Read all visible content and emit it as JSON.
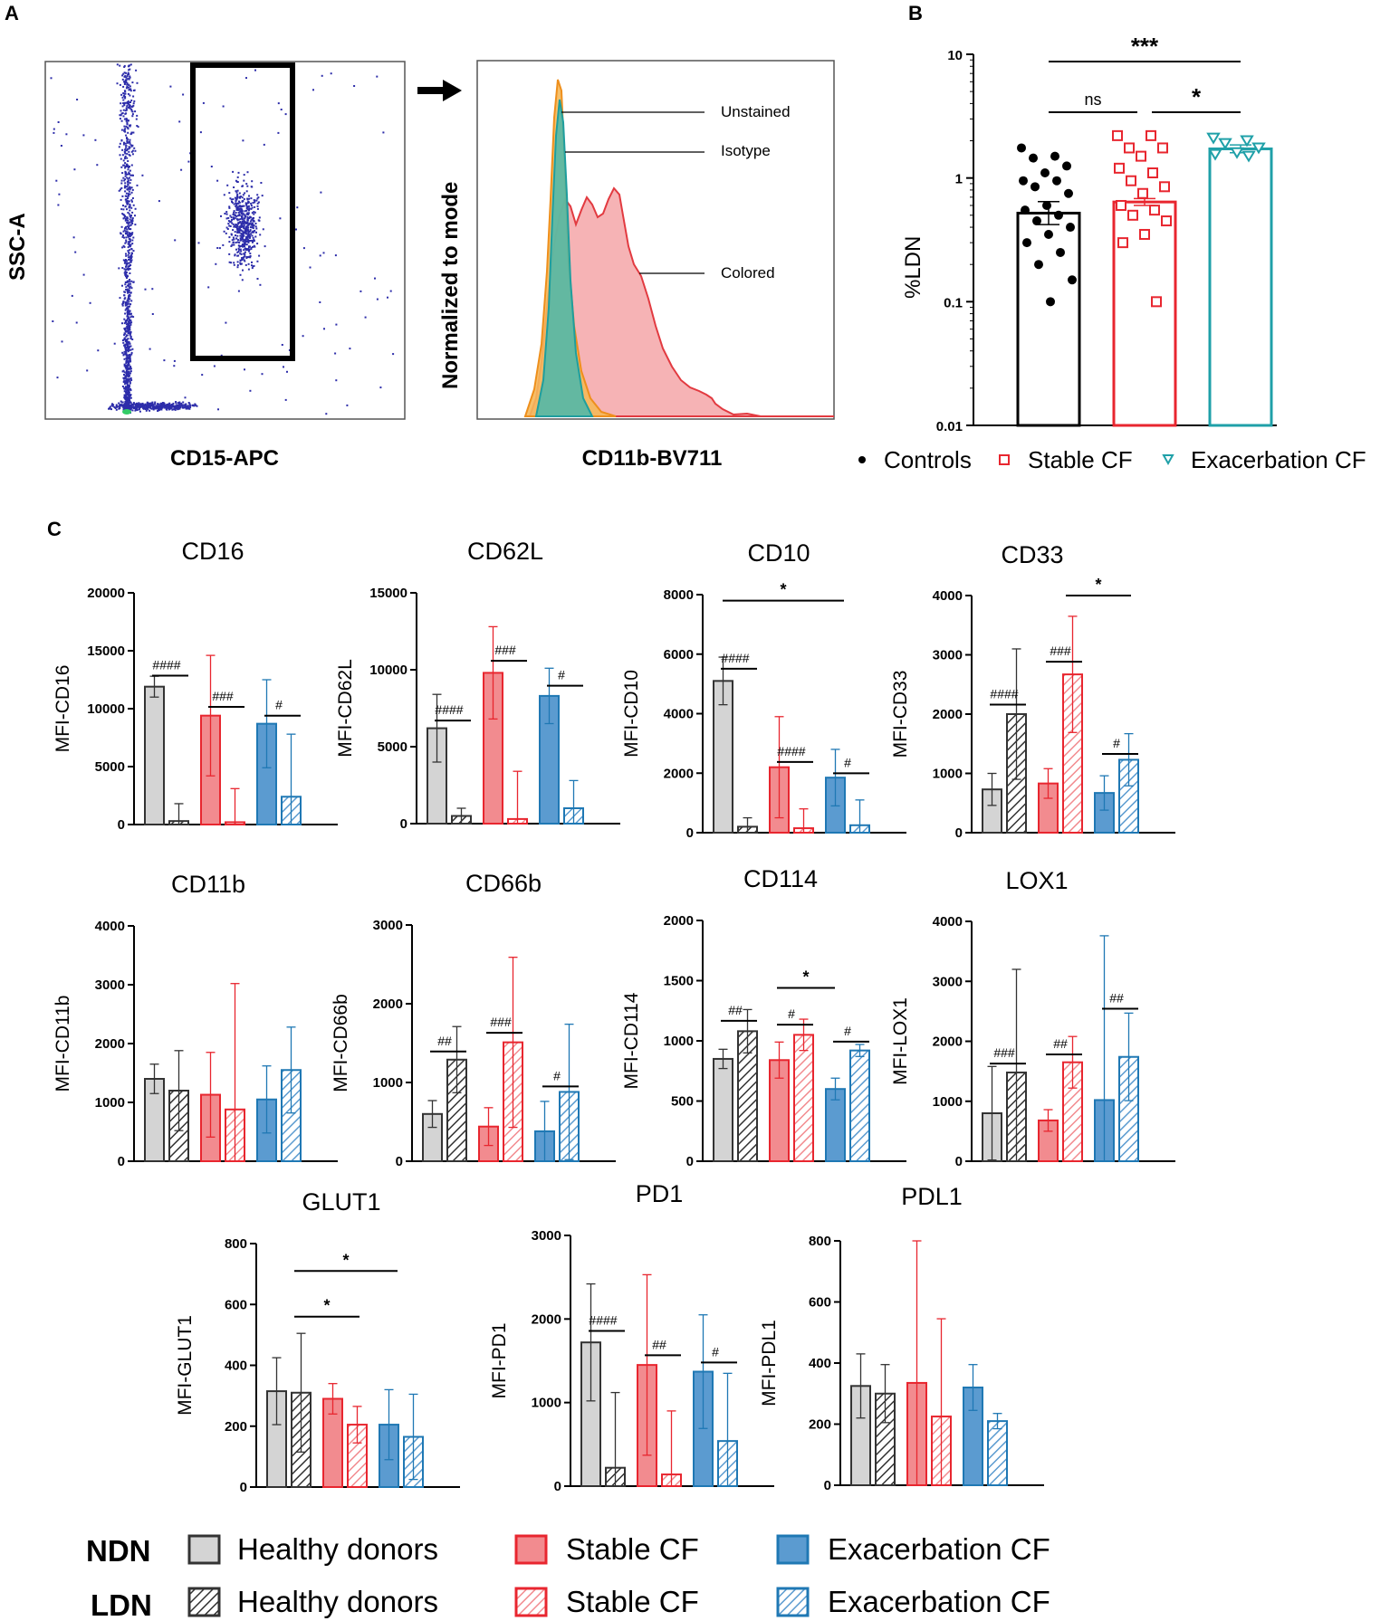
{
  "panels": {
    "a": "A",
    "b": "B",
    "c": "C"
  },
  "panel_a": {
    "scatter": {
      "xlabel": "CD15-APC",
      "ylabel": "SSC-A"
    },
    "histogram": {
      "xlabel": "CD11b-BV711",
      "ylabel": "Normalized to mode",
      "labels": [
        "Unstained",
        "Isotype",
        "Colored"
      ]
    }
  },
  "colors": {
    "healthy_fill": "#d4d4d4",
    "healthy_line": "#333333",
    "stable_fill": "#f28b8f",
    "stable_line": "#e8262f",
    "exac_fill": "#5b9bd0",
    "exac_line": "#1f78b4",
    "teal": "#1fa0a8",
    "dots": "#2d2daa",
    "orange": "#f0a030"
  },
  "chart_data": [
    {
      "id": "B",
      "type": "bar",
      "title": "",
      "ylabel": "%LDN",
      "yscale": "log",
      "yticks": [
        "0.01",
        "0.1",
        "1",
        "10"
      ],
      "categories": [
        "Controls",
        "Stable CF",
        "Exacerbation CF"
      ],
      "values": [
        0.52,
        0.64,
        1.72
      ],
      "errors": [
        0.42,
        0.6,
        1.85
      ],
      "points": [
        [
          1.75,
          1.5,
          1.45,
          1.25,
          1.1,
          0.95,
          0.95,
          0.85,
          0.75,
          0.6,
          0.55,
          0.5,
          0.45,
          0.4,
          0.35,
          0.3,
          0.25,
          0.2,
          0.15,
          0.1
        ],
        [
          2.2,
          2.2,
          1.75,
          1.75,
          1.5,
          1.2,
          1.1,
          0.95,
          0.85,
          0.75,
          0.6,
          0.55,
          0.5,
          0.45,
          0.35,
          0.3,
          0.1
        ],
        [
          2.1,
          2.0,
          1.9,
          1.75,
          1.6,
          1.55,
          1.5
        ]
      ],
      "significance": [
        {
          "from": 0,
          "to": 2,
          "label": "***"
        },
        {
          "from": 0,
          "to": 1,
          "label": "ns"
        },
        {
          "from": 1,
          "to": 2,
          "label": "*"
        }
      ],
      "legend": [
        "Controls",
        "Stable CF",
        "Exacerbation CF"
      ]
    },
    {
      "id": "CD16",
      "title": "CD16",
      "ylabel": "MFI-CD16",
      "ymax": 20000,
      "yticks": [
        0,
        5000,
        10000,
        15000,
        20000
      ],
      "groups": [
        {
          "ndn": 11900,
          "ndn_err": 12800,
          "ldn": 300,
          "ldn_err": 1800
        },
        {
          "ndn": 9400,
          "ndn_err": 14600,
          "ldn": 200,
          "ldn_err": 3100
        },
        {
          "ndn": 8700,
          "ndn_err": 12500,
          "ldn": 2400,
          "ldn_err": 7800
        }
      ],
      "hash": [
        "####",
        "###",
        "#"
      ],
      "star": []
    },
    {
      "id": "CD62L",
      "title": "CD62L",
      "ylabel": "MFI-CD62L",
      "ymax": 15000,
      "yticks": [
        0,
        5000,
        10000,
        15000
      ],
      "groups": [
        {
          "ndn": 6200,
          "ndn_err": 8400,
          "ldn": 500,
          "ldn_err": 1000
        },
        {
          "ndn": 9800,
          "ndn_err": 12800,
          "ldn": 300,
          "ldn_err": 3400
        },
        {
          "ndn": 8300,
          "ndn_err": 10100,
          "ldn": 1000,
          "ldn_err": 2800
        }
      ],
      "hash": [
        "####",
        "###",
        "#"
      ],
      "star": []
    },
    {
      "id": "CD10",
      "title": "CD10",
      "ylabel": "MFI-CD10",
      "ymax": 8000,
      "yticks": [
        0,
        2000,
        4000,
        6000,
        8000
      ],
      "groups": [
        {
          "ndn": 5100,
          "ndn_err": 5900,
          "ldn": 200,
          "ldn_err": 500
        },
        {
          "ndn": 2200,
          "ndn_err": 3900,
          "ldn": 150,
          "ldn_err": 800
        },
        {
          "ndn": 1850,
          "ndn_err": 2800,
          "ldn": 250,
          "ldn_err": 1100
        }
      ],
      "hash": [
        "####",
        "####",
        "#"
      ],
      "star": [
        {
          "label": "*",
          "value": 7800
        }
      ]
    },
    {
      "id": "CD33",
      "title": "CD33",
      "ylabel": "MFI-CD33",
      "ymax": 4000,
      "yticks": [
        0,
        1000,
        2000,
        3000,
        4000
      ],
      "groups": [
        {
          "ndn": 730,
          "ndn_err": 1000,
          "ldn": 2000,
          "ldn_err": 3100
        },
        {
          "ndn": 830,
          "ndn_err": 1080,
          "ldn": 2670,
          "ldn_err": 3650
        },
        {
          "ndn": 670,
          "ndn_err": 960,
          "ldn": 1230,
          "ldn_err": 1670
        }
      ],
      "hash": [
        "####",
        "###",
        "#"
      ],
      "star": [
        {
          "label": "*",
          "value": 4000
        }
      ]
    },
    {
      "id": "CD11b",
      "title": "CD11b",
      "ylabel": "MFI-CD11b",
      "ymax": 4000,
      "yticks": [
        0,
        1000,
        2000,
        3000,
        4000
      ],
      "groups": [
        {
          "ndn": 1400,
          "ndn_err": 1650,
          "ldn": 1200,
          "ldn_err": 1880
        },
        {
          "ndn": 1130,
          "ndn_err": 1850,
          "ldn": 880,
          "ldn_err": 3020
        },
        {
          "ndn": 1050,
          "ndn_err": 1620,
          "ldn": 1550,
          "ldn_err": 2280
        }
      ],
      "hash": [],
      "star": []
    },
    {
      "id": "CD66b",
      "title": "CD66b",
      "ylabel": "MFI-CD66b",
      "ymax": 3000,
      "yticks": [
        0,
        1000,
        2000,
        3000
      ],
      "groups": [
        {
          "ndn": 600,
          "ndn_err": 770,
          "ldn": 1290,
          "ldn_err": 1710
        },
        {
          "ndn": 440,
          "ndn_err": 680,
          "ldn": 1510,
          "ldn_err": 2590
        },
        {
          "ndn": 380,
          "ndn_err": 760,
          "ldn": 880,
          "ldn_err": 1740
        }
      ],
      "hash": [
        "##",
        "###",
        "#"
      ],
      "star": []
    },
    {
      "id": "CD114",
      "title": "CD114",
      "ylabel": "MFI-CD114",
      "ymax": 2000,
      "yticks": [
        0,
        500,
        1000,
        1500,
        2000
      ],
      "groups": [
        {
          "ndn": 850,
          "ndn_err": 930,
          "ldn": 1080,
          "ldn_err": 1260
        },
        {
          "ndn": 840,
          "ndn_err": 990,
          "ldn": 1050,
          "ldn_err": 1180
        },
        {
          "ndn": 600,
          "ndn_err": 690,
          "ldn": 920,
          "ldn_err": 970
        }
      ],
      "hash": [
        "##",
        "#",
        "#"
      ],
      "star": [
        {
          "label": "*",
          "value": 1440
        }
      ]
    },
    {
      "id": "LOX1",
      "title": "LOX1",
      "ylabel": "MFI-LOX1",
      "ymax": 4000,
      "yticks": [
        0,
        1000,
        2000,
        3000,
        4000
      ],
      "groups": [
        {
          "ndn": 800,
          "ndn_err": 1580,
          "ldn": 1480,
          "ldn_err": 3200
        },
        {
          "ndn": 680,
          "ndn_err": 860,
          "ldn": 1650,
          "ldn_err": 2080
        },
        {
          "ndn": 1020,
          "ndn_err": 3760,
          "ldn": 1740,
          "ldn_err": 2470
        }
      ],
      "hash": [
        "###",
        "##",
        "##"
      ],
      "star": []
    },
    {
      "id": "GLUT1",
      "title": "GLUT1",
      "ylabel": "MFI-GLUT1",
      "ymax": 800,
      "yticks": [
        0,
        200,
        400,
        600,
        800
      ],
      "groups": [
        {
          "ndn": 315,
          "ndn_err": 425,
          "ldn": 310,
          "ldn_err": 505
        },
        {
          "ndn": 290,
          "ndn_err": 340,
          "ldn": 205,
          "ldn_err": 265
        },
        {
          "ndn": 205,
          "ndn_err": 320,
          "ldn": 165,
          "ldn_err": 305
        }
      ],
      "hash": [],
      "star": [
        {
          "label": "*",
          "value": 710
        },
        {
          "label": "*",
          "value": 560
        }
      ]
    },
    {
      "id": "PD1",
      "title": "PD1",
      "ylabel": "MFI-PD1",
      "ymax": 3000,
      "yticks": [
        0,
        1000,
        2000,
        3000
      ],
      "groups": [
        {
          "ndn": 1720,
          "ndn_err": 2420,
          "ldn": 220,
          "ldn_err": 1120
        },
        {
          "ndn": 1450,
          "ndn_err": 2530,
          "ldn": 140,
          "ldn_err": 900
        },
        {
          "ndn": 1370,
          "ndn_err": 2050,
          "ldn": 540,
          "ldn_err": 1350
        }
      ],
      "hash": [
        "####",
        "##",
        "#"
      ],
      "star": []
    },
    {
      "id": "PDL1",
      "title": "PDL1",
      "ylabel": "MFI-PDL1",
      "ymax": 800,
      "yticks": [
        0,
        200,
        400,
        600,
        800
      ],
      "groups": [
        {
          "ndn": 325,
          "ndn_err": 430,
          "ldn": 300,
          "ldn_err": 395
        },
        {
          "ndn": 335,
          "ndn_err": 800,
          "ldn": 225,
          "ldn_err": 545
        },
        {
          "ndn": 320,
          "ndn_err": 395,
          "ldn": 210,
          "ldn_err": 235
        }
      ],
      "hash": [],
      "star": []
    }
  ],
  "legend_c": {
    "ndn_label": "NDN",
    "ldn_label": "LDN",
    "healthy": "Healthy donors",
    "stable": "Stable CF",
    "exac_ndn": "Exacerbation CF",
    "exac_ldn": "Exacerbation  CF"
  }
}
